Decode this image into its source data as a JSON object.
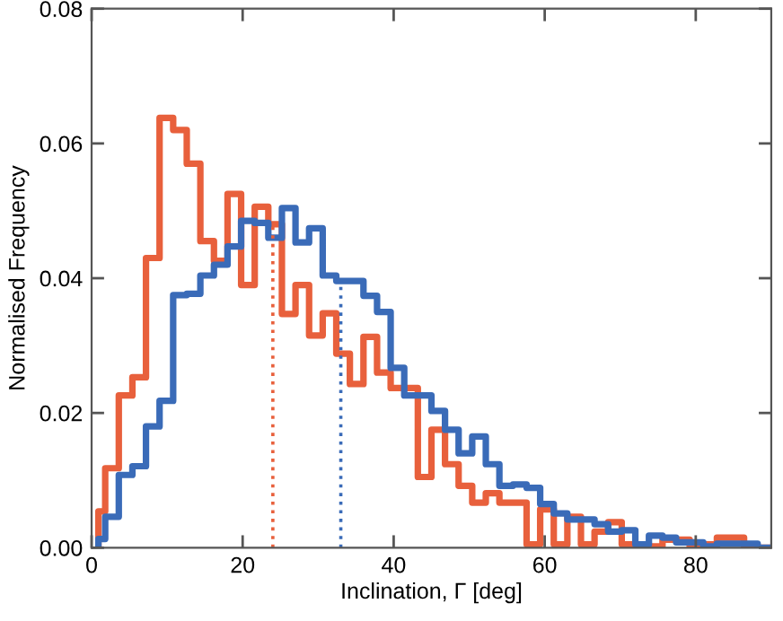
{
  "chart_data": {
    "type": "histogram",
    "xlabel": "Inclination, Γ [deg]",
    "ylabel": "Normalised Frequency",
    "bins": [
      0.9,
      1.8,
      3.6,
      5.4,
      7.2,
      9.0,
      10.8,
      12.6,
      14.4,
      16.2,
      18.0,
      19.8,
      21.6,
      23.4,
      25.2,
      27.0,
      28.8,
      30.6,
      32.4,
      34.2,
      36.0,
      37.8,
      39.6,
      41.4,
      43.2,
      45.0,
      46.8,
      48.6,
      50.4,
      52.2,
      54.0,
      55.8,
      57.6,
      59.4,
      61.2,
      63.0,
      64.8,
      66.6,
      68.4,
      70.2,
      72.0,
      73.8,
      75.6,
      77.4,
      79.2,
      81.0,
      82.8,
      84.6,
      86.4,
      88.2,
      90.0
    ],
    "series": [
      {
        "color": "#e8603c",
        "values": [
          0.0054,
          0.0118,
          0.0226,
          0.0253,
          0.043,
          0.0638,
          0.062,
          0.057,
          0.0455,
          0.0426,
          0.0525,
          0.039,
          0.0506,
          0.048,
          0.0347,
          0.039,
          0.0315,
          0.0348,
          0.0288,
          0.0243,
          0.0313,
          0.026,
          0.0237,
          0.0237,
          0.0105,
          0.0175,
          0.0124,
          0.0092,
          0.0067,
          0.0081,
          0.0067,
          0.0067,
          0.0005,
          0.0057,
          0.0005,
          0.0046,
          0.0005,
          0.0024,
          0.0038,
          0.0005,
          0.0002,
          0.0002,
          0.0012,
          0.0012,
          0.0,
          0.0005,
          0.0015,
          0.0015,
          0.0,
          0.0
        ]
      },
      {
        "color": "#3a6bb8",
        "values": [
          0.0013,
          0.0046,
          0.0108,
          0.0121,
          0.018,
          0.0218,
          0.0375,
          0.0377,
          0.0404,
          0.042,
          0.0447,
          0.0485,
          0.0482,
          0.046,
          0.0504,
          0.0453,
          0.0474,
          0.0404,
          0.0396,
          0.0396,
          0.0374,
          0.035,
          0.0267,
          0.0226,
          0.0226,
          0.0203,
          0.0175,
          0.014,
          0.0165,
          0.0124,
          0.0092,
          0.0094,
          0.0089,
          0.0065,
          0.0051,
          0.0042,
          0.0042,
          0.0035,
          0.0024,
          0.0026,
          0.0005,
          0.0018,
          0.0015,
          0.0008,
          0.0008,
          0.0002,
          0.0006,
          0.0006,
          0.0006,
          0.0
        ]
      }
    ],
    "ref_lines": [
      {
        "axis": "x",
        "value": 24.0,
        "color": "#e8603c",
        "line_style": "dotted"
      },
      {
        "axis": "x",
        "value": 33.0,
        "color": "#3a6bb8",
        "line_style": "dotted"
      }
    ],
    "xlim": [
      0,
      90
    ],
    "ylim": [
      0,
      0.08
    ],
    "xticks": [
      0,
      20,
      40,
      60,
      80
    ],
    "yticks": [
      {
        "value": 0,
        "label": "0.00"
      },
      {
        "value": 0.02,
        "label": "0.02"
      },
      {
        "value": 0.04,
        "label": "0.04"
      },
      {
        "value": 0.06,
        "label": "0.06"
      },
      {
        "value": 0.08,
        "label": "0.08"
      }
    ],
    "grid": false,
    "legend": false
  }
}
